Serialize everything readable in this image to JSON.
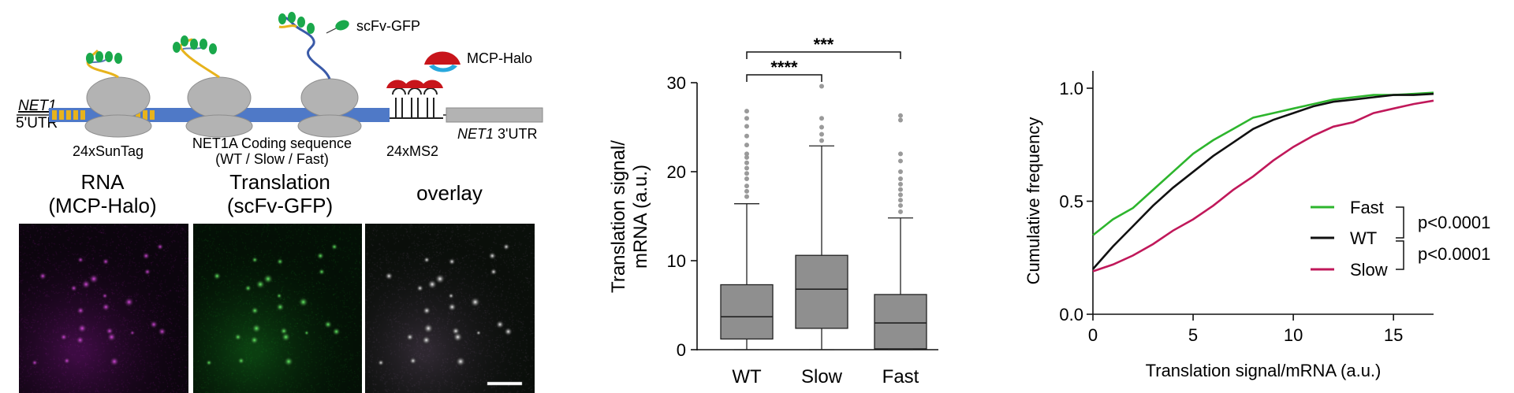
{
  "schematic": {
    "net1_5utr_line1": "NET1",
    "net1_5utr_line2": "5'UTR",
    "sun_tag_label": "24xSunTag",
    "cds_line1": "NET1A Coding sequence",
    "cds_line2": "(WT / Slow / Fast)",
    "ms2_label": "24xMS2",
    "utr3_italic": "NET1",
    "utr3_rest": " 3'UTR",
    "scfv_label": "scFv-GFP",
    "mcp_label": "MCP-Halo",
    "colors": {
      "suntag": "#e7b31c",
      "cds": "#4f79c7",
      "ribosome": "#b3b3b3",
      "mcp": "#c8151b",
      "halo": "#28a8dd",
      "gfp": "#1aa84b"
    }
  },
  "microscopy": {
    "panels": [
      {
        "title_line1": "RNA",
        "title_line2": "(MCP-Halo)",
        "color": "#c021c9"
      },
      {
        "title_line1": "Translation",
        "title_line2": "(scFv-GFP)",
        "color": "#2fd62f"
      },
      {
        "title_line1": "overlay",
        "title_line2": "",
        "color": "#e6e6e6"
      }
    ],
    "scale_bar": true
  },
  "chart_data": [
    {
      "type": "box",
      "ylabel_line1": "Translation signal/",
      "ylabel_line2": "mRNA (a.u.)",
      "ylim": [
        0,
        30
      ],
      "yticks": [
        "0",
        "10",
        "20",
        "30"
      ],
      "categories": [
        "WT",
        "Slow",
        "Fast"
      ],
      "boxes": [
        {
          "name": "WT",
          "whisker_low": 0,
          "q1": 1.2,
          "median": 3.7,
          "q3": 7.3,
          "whisker_high": 16.4,
          "outliers": [
            17.2,
            17.8,
            18.4,
            19.2,
            19.8,
            20.4,
            21.0,
            21.6,
            22.0,
            23.0,
            24.0,
            25.1,
            26.0,
            26.8
          ]
        },
        {
          "name": "Slow",
          "whisker_low": 0,
          "q1": 2.4,
          "median": 6.8,
          "q3": 10.6,
          "whisker_high": 22.9,
          "outliers": [
            23.5,
            24.2,
            25.0,
            26.0,
            29.6
          ]
        },
        {
          "name": "Fast",
          "whisker_low": 0,
          "q1": 0.1,
          "median": 3.0,
          "q3": 6.2,
          "whisker_high": 14.8,
          "outliers": [
            15.5,
            16.2,
            16.8,
            17.4,
            18.0,
            18.6,
            19.2,
            20.0,
            21.2,
            22.0,
            25.8,
            26.3
          ]
        }
      ],
      "annotations": [
        {
          "from": "WT",
          "to": "Slow",
          "label": "****"
        },
        {
          "from": "WT",
          "to": "Fast",
          "label": "***"
        }
      ],
      "colors": {
        "box": "#8f8f8f",
        "outlier": "#9a9a9a"
      }
    },
    {
      "type": "line",
      "xlabel": "Translation signal/mRNA (a.u.)",
      "ylabel": "Cumulative frequency",
      "xlim": [
        0,
        17
      ],
      "ylim": [
        0,
        1
      ],
      "xticks": [
        "0",
        "5",
        "10",
        "15"
      ],
      "yticks": [
        "0.0",
        "0.5",
        "1.0"
      ],
      "series": [
        {
          "name": "Fast",
          "color": "#2db52d",
          "x": [
            0,
            1,
            2,
            3,
            4,
            5,
            6,
            7,
            8,
            9,
            10,
            11,
            12,
            13,
            14,
            15,
            16,
            17
          ],
          "y": [
            0.35,
            0.42,
            0.47,
            0.55,
            0.63,
            0.71,
            0.77,
            0.82,
            0.87,
            0.89,
            0.91,
            0.93,
            0.95,
            0.96,
            0.97,
            0.97,
            0.975,
            0.98
          ]
        },
        {
          "name": "WT",
          "color": "#111111",
          "x": [
            0,
            1,
            2,
            3,
            4,
            5,
            6,
            7,
            8,
            9,
            10,
            11,
            12,
            13,
            14,
            15,
            16,
            17
          ],
          "y": [
            0.2,
            0.3,
            0.39,
            0.48,
            0.56,
            0.63,
            0.7,
            0.76,
            0.82,
            0.86,
            0.89,
            0.92,
            0.94,
            0.95,
            0.96,
            0.97,
            0.97,
            0.975
          ]
        },
        {
          "name": "Slow",
          "color": "#c0185a",
          "x": [
            0,
            1,
            2,
            3,
            4,
            5,
            6,
            7,
            8,
            9,
            10,
            11,
            12,
            13,
            14,
            15,
            16,
            17
          ],
          "y": [
            0.19,
            0.22,
            0.26,
            0.31,
            0.37,
            0.42,
            0.48,
            0.55,
            0.61,
            0.68,
            0.74,
            0.79,
            0.83,
            0.85,
            0.89,
            0.91,
            0.93,
            0.945
          ]
        }
      ],
      "legend_position": "bottom-right",
      "pvalues": [
        "p<0.0001",
        "p<0.0001"
      ]
    }
  ]
}
